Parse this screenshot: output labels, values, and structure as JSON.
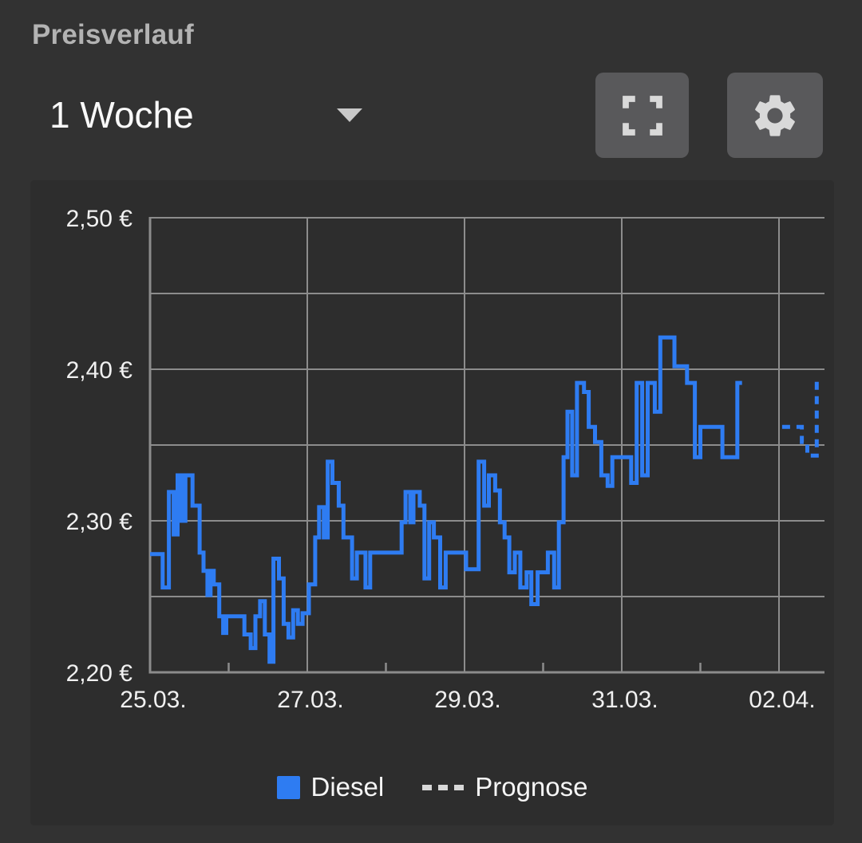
{
  "header": {
    "title": "Preisverlauf",
    "range_selected": "1 Woche"
  },
  "legend": {
    "diesel_label": "Diesel",
    "forecast_label": "Prognose"
  },
  "colors": {
    "accent_blue": "#2E7CF2",
    "page_bg": "#323232",
    "card_bg": "#2D2D2D",
    "button_bg": "#59595B",
    "icon": "#D9D9D9",
    "grid": "#8C8C8C",
    "axis_text": "#F0F0F0",
    "title_text": "#B3B3B3",
    "legend_dash": "#D8D8D8"
  },
  "chart_data": {
    "type": "line",
    "step": "after",
    "title": "Preisverlauf",
    "currency_format": "de-EUR",
    "x_unit": "days since 25.03 00:00",
    "x_range": [
      0,
      8.58
    ],
    "y_range": [
      2.2,
      2.5
    ],
    "grid": true,
    "legend_position": "bottom",
    "y_ticks": [
      {
        "value": 2.5,
        "label": "2,50 €"
      },
      {
        "value": 2.4,
        "label": "2,40 €"
      },
      {
        "value": 2.3,
        "label": "2,30 €"
      },
      {
        "value": 2.2,
        "label": "2,20 €"
      }
    ],
    "y_gridlines": [
      2.5,
      2.45,
      2.4,
      2.35,
      2.3,
      2.25
    ],
    "x_ticks": [
      {
        "day": 0,
        "label": "25.03."
      },
      {
        "day": 2,
        "label": "27.03."
      },
      {
        "day": 4,
        "label": "29.03."
      },
      {
        "day": 6,
        "label": "31.03."
      },
      {
        "day": 8,
        "label": "02.04."
      }
    ],
    "x_minor_tick_days": [
      1,
      3,
      5,
      7
    ],
    "series": [
      {
        "name": "Diesel",
        "style": "solid",
        "color": "#2E7CF2",
        "points": [
          [
            0.0,
            2.278
          ],
          [
            0.16,
            2.256
          ],
          [
            0.24,
            2.319
          ],
          [
            0.3,
            2.291
          ],
          [
            0.35,
            2.33
          ],
          [
            0.4,
            2.3
          ],
          [
            0.45,
            2.33
          ],
          [
            0.54,
            2.31
          ],
          [
            0.63,
            2.279
          ],
          [
            0.68,
            2.267
          ],
          [
            0.73,
            2.251
          ],
          [
            0.77,
            2.267
          ],
          [
            0.81,
            2.258
          ],
          [
            0.88,
            2.237
          ],
          [
            0.93,
            2.226
          ],
          [
            0.97,
            2.237
          ],
          [
            1.2,
            2.225
          ],
          [
            1.28,
            2.216
          ],
          [
            1.34,
            2.237
          ],
          [
            1.4,
            2.247
          ],
          [
            1.46,
            2.225
          ],
          [
            1.52,
            2.207
          ],
          [
            1.57,
            2.275
          ],
          [
            1.64,
            2.262
          ],
          [
            1.7,
            2.232
          ],
          [
            1.76,
            2.223
          ],
          [
            1.82,
            2.241
          ],
          [
            1.88,
            2.232
          ],
          [
            1.94,
            2.239
          ],
          [
            2.02,
            2.258
          ],
          [
            2.1,
            2.289
          ],
          [
            2.15,
            2.309
          ],
          [
            2.21,
            2.289
          ],
          [
            2.26,
            2.339
          ],
          [
            2.32,
            2.325
          ],
          [
            2.4,
            2.31
          ],
          [
            2.46,
            2.289
          ],
          [
            2.57,
            2.262
          ],
          [
            2.63,
            2.279
          ],
          [
            2.74,
            2.256
          ],
          [
            2.8,
            2.279
          ],
          [
            3.2,
            2.299
          ],
          [
            3.25,
            2.319
          ],
          [
            3.31,
            2.299
          ],
          [
            3.35,
            2.319
          ],
          [
            3.43,
            2.31
          ],
          [
            3.49,
            2.262
          ],
          [
            3.55,
            2.299
          ],
          [
            3.61,
            2.289
          ],
          [
            3.69,
            2.256
          ],
          [
            3.76,
            2.279
          ],
          [
            4.02,
            2.268
          ],
          [
            4.18,
            2.339
          ],
          [
            4.25,
            2.31
          ],
          [
            4.31,
            2.33
          ],
          [
            4.39,
            2.32
          ],
          [
            4.45,
            2.299
          ],
          [
            4.51,
            2.289
          ],
          [
            4.57,
            2.266
          ],
          [
            4.64,
            2.279
          ],
          [
            4.71,
            2.256
          ],
          [
            4.79,
            2.266
          ],
          [
            4.85,
            2.245
          ],
          [
            4.93,
            2.266
          ],
          [
            5.06,
            2.279
          ],
          [
            5.14,
            2.256
          ],
          [
            5.2,
            2.299
          ],
          [
            5.26,
            2.342
          ],
          [
            5.31,
            2.372
          ],
          [
            5.37,
            2.33
          ],
          [
            5.43,
            2.391
          ],
          [
            5.52,
            2.385
          ],
          [
            5.58,
            2.362
          ],
          [
            5.66,
            2.352
          ],
          [
            5.74,
            2.33
          ],
          [
            5.82,
            2.323
          ],
          [
            5.88,
            2.342
          ],
          [
            6.12,
            2.325
          ],
          [
            6.19,
            2.391
          ],
          [
            6.26,
            2.33
          ],
          [
            6.33,
            2.391
          ],
          [
            6.42,
            2.372
          ],
          [
            6.49,
            2.421
          ],
          [
            6.67,
            2.402
          ],
          [
            6.83,
            2.391
          ],
          [
            6.93,
            2.342
          ],
          [
            7.0,
            2.362
          ],
          [
            7.28,
            2.342
          ],
          [
            7.47,
            2.391
          ],
          [
            7.53,
            2.391
          ]
        ]
      },
      {
        "name": "Prognose",
        "style": "dashed",
        "color": "#2E7CF2",
        "points": [
          [
            8.04,
            2.362
          ],
          [
            8.29,
            2.352
          ],
          [
            8.36,
            2.343
          ],
          [
            8.48,
            2.392
          ],
          [
            8.54,
            2.392
          ]
        ]
      }
    ]
  }
}
